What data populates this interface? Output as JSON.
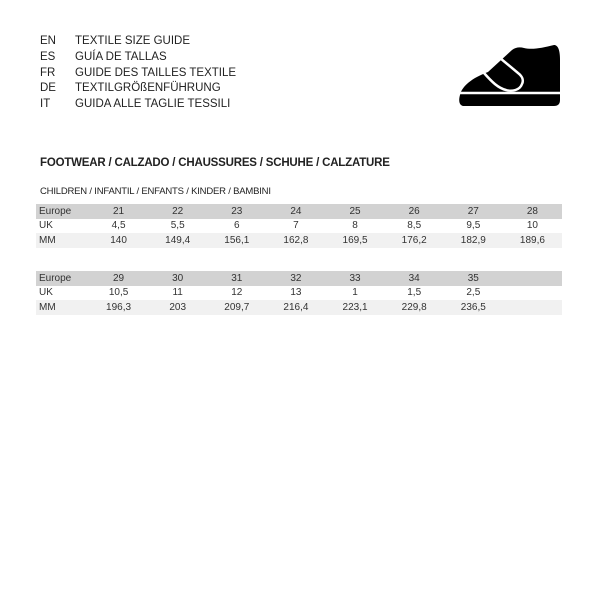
{
  "languages": [
    {
      "code": "EN",
      "label": "TEXTILE SIZE GUIDE"
    },
    {
      "code": "ES",
      "label": "GUÍA DE TALLAS"
    },
    {
      "code": "FR",
      "label": "GUIDE DES TAILLES TEXTILE"
    },
    {
      "code": "DE",
      "label": "TEXTILGRÖßENFÜHRUNG"
    },
    {
      "code": "IT",
      "label": "GUIDA ALLE TAGLIE TESSILI"
    }
  ],
  "icon": "shoe-icon",
  "section_title": "FOOTWEAR / CALZADO / CHAUSSURES / SCHUHE / CALZATURE",
  "subsection_title": "CHILDREN / INFANTIL / ENFANTS / KINDER / BAMBINI",
  "tables": [
    {
      "rows": [
        {
          "label": "Europe",
          "values": [
            "21",
            "22",
            "23",
            "24",
            "25",
            "26",
            "27",
            "28"
          ]
        },
        {
          "label": "UK",
          "values": [
            "4,5",
            "5,5",
            "6",
            "7",
            "8",
            "8,5",
            "9,5",
            "10"
          ]
        },
        {
          "label": "MM",
          "values": [
            "140",
            "149,4",
            "156,1",
            "162,8",
            "169,5",
            "176,2",
            "182,9",
            "189,6"
          ]
        }
      ]
    },
    {
      "rows": [
        {
          "label": "Europe",
          "values": [
            "29",
            "30",
            "31",
            "32",
            "33",
            "34",
            "35",
            ""
          ]
        },
        {
          "label": "UK",
          "values": [
            "10,5",
            "11",
            "12",
            "13",
            "1",
            "1,5",
            "2,5",
            ""
          ]
        },
        {
          "label": "MM",
          "values": [
            "196,3",
            "203",
            "209,7",
            "216,4",
            "223,1",
            "229,8",
            "236,5",
            ""
          ]
        }
      ]
    }
  ]
}
